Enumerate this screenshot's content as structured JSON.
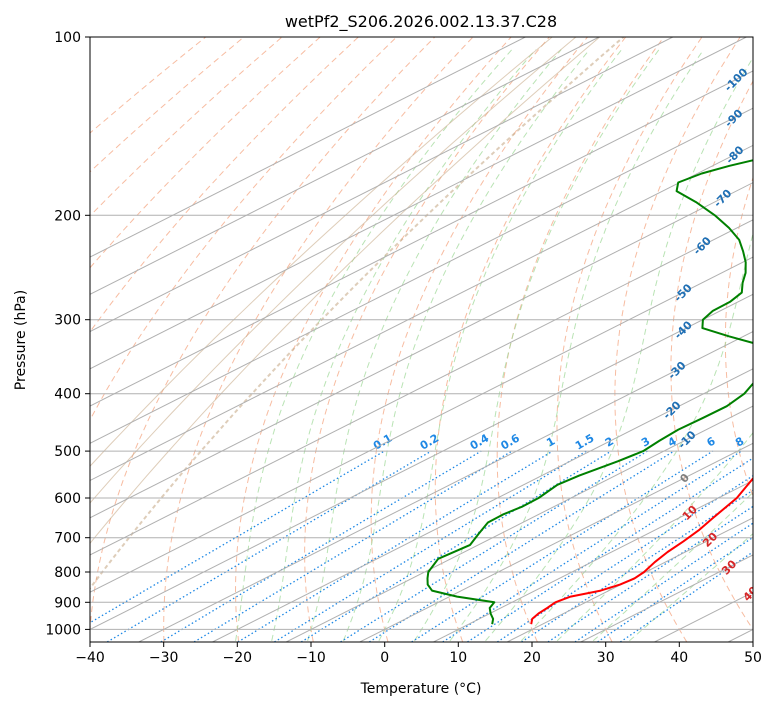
{
  "chart_data": {
    "type": "skew-t",
    "title": "wetPf2_S206.2026.002.13.37.C28",
    "xlabel": "Temperature (°C)",
    "ylabel": "Pressure (hPa)",
    "xlim": [
      -40,
      50
    ],
    "ylim_hpa": [
      1050,
      100
    ],
    "skew_c_per_log_pressure": 69.1,
    "x_ticks": [
      -40,
      -30,
      -20,
      -10,
      0,
      10,
      20,
      30,
      40,
      50
    ],
    "x_tick_labels": [
      "−40",
      "−30",
      "−20",
      "−10",
      "0",
      "10",
      "20",
      "30",
      "40",
      "50"
    ],
    "y_ticks": [
      100,
      200,
      300,
      400,
      500,
      600,
      700,
      800,
      900,
      1000
    ],
    "y_tick_labels": [
      "100",
      "200",
      "300",
      "400",
      "500",
      "600",
      "700",
      "800",
      "900",
      "1000"
    ],
    "grid": true,
    "series": [
      {
        "name": "temperature",
        "color": "#ff0000",
        "points": [
          [
            980,
            18.5
          ],
          [
            960,
            17.2
          ],
          [
            940,
            16.6
          ],
          [
            920,
            16.3
          ],
          [
            900,
            15.9
          ],
          [
            880,
            16.4
          ],
          [
            860,
            18.9
          ],
          [
            840,
            19.9
          ],
          [
            820,
            20.2
          ],
          [
            800,
            19.8
          ],
          [
            770,
            18.6
          ],
          [
            740,
            17.6
          ],
          [
            710,
            16.9
          ],
          [
            680,
            16.0
          ],
          [
            650,
            14.7
          ],
          [
            600,
            12.5
          ],
          [
            550,
            9.0
          ],
          [
            500,
            4.7
          ],
          [
            450,
            0.1
          ],
          [
            400,
            -6.0
          ],
          [
            370,
            -10.3
          ],
          [
            340,
            -14.4
          ],
          [
            310,
            -19.9
          ],
          [
            290,
            -24.2
          ],
          [
            270,
            -29.3
          ],
          [
            250,
            -34.7
          ],
          [
            240,
            -37.7
          ],
          [
            230,
            -40.1
          ],
          [
            220,
            -41.0
          ],
          [
            210,
            -40.0
          ],
          [
            200,
            -39.0
          ],
          [
            180,
            -38.2
          ],
          [
            160,
            -40.2
          ],
          [
            140,
            -45.1
          ],
          [
            130,
            -48.8
          ],
          [
            120,
            -53.7
          ],
          [
            112,
            -57.4
          ],
          [
            100,
            -64.6
          ]
        ]
      },
      {
        "name": "dewpoint",
        "color": "#008000",
        "points": [
          [
            980,
            13.2
          ],
          [
            960,
            11.9
          ],
          [
            940,
            10.1
          ],
          [
            920,
            8.5
          ],
          [
            900,
            7.6
          ],
          [
            880,
            1.0
          ],
          [
            860,
            -4.0
          ],
          [
            840,
            -6.2
          ],
          [
            820,
            -7.9
          ],
          [
            800,
            -9.5
          ],
          [
            760,
            -11.7
          ],
          [
            720,
            -11.1
          ],
          [
            690,
            -12.9
          ],
          [
            660,
            -14.7
          ],
          [
            640,
            -14.8
          ],
          [
            620,
            -14.3
          ],
          [
            600,
            -14.4
          ],
          [
            570,
            -15.4
          ],
          [
            550,
            -14.9
          ],
          [
            520,
            -13.5
          ],
          [
            500,
            -12.8
          ],
          [
            480,
            -13.4
          ],
          [
            460,
            -13.8
          ],
          [
            440,
            -13.6
          ],
          [
            420,
            -13.5
          ],
          [
            400,
            -14.5
          ],
          [
            380,
            -16.5
          ],
          [
            360,
            -18.9
          ],
          [
            340,
            -22.6
          ],
          [
            330,
            -26.0
          ],
          [
            320,
            -32.0
          ],
          [
            310,
            -37.8
          ],
          [
            300,
            -40.0
          ],
          [
            290,
            -41.0
          ],
          [
            280,
            -41.1
          ],
          [
            270,
            -42.0
          ],
          [
            260,
            -44.5
          ],
          [
            250,
            -46.8
          ],
          [
            240,
            -49.6
          ],
          [
            230,
            -52.9
          ],
          [
            220,
            -56.5
          ],
          [
            210,
            -61.1
          ],
          [
            200,
            -66.4
          ],
          [
            190,
            -72.5
          ],
          [
            182,
            -78.1
          ],
          [
            176,
            -80.2
          ],
          [
            170,
            -79.4
          ],
          [
            165,
            -77.7
          ],
          [
            160,
            -75.3
          ],
          [
            150,
            -71.8
          ],
          [
            140,
            -69.1
          ],
          [
            130,
            -67.3
          ],
          [
            120,
            -66.9
          ],
          [
            110,
            -67.5
          ],
          [
            100,
            -70.6
          ]
        ]
      }
    ],
    "isotherms_c": [
      -140,
      -130,
      -120,
      -110,
      -100,
      -90,
      -80,
      -70,
      -60,
      -50,
      -40,
      -30,
      -20,
      -10,
      0,
      10,
      20,
      30,
      40,
      50
    ],
    "dry_adiabats_c": [
      -100,
      -90,
      -80,
      -70,
      -60,
      -50,
      -40,
      -30,
      -20,
      -10,
      0,
      10,
      20,
      30,
      40,
      50,
      60,
      70,
      80,
      90,
      100,
      110,
      120,
      130,
      140,
      150,
      160,
      170,
      180,
      190,
      200,
      210
    ],
    "moist_adiabats_c": [
      -20,
      -15,
      -10,
      -5,
      0,
      5,
      10,
      15,
      20,
      25,
      30,
      35
    ],
    "mixing_ratios_gkg": [
      0.1,
      0.2,
      0.4,
      0.6,
      1,
      1.5,
      2,
      3,
      4,
      6,
      8,
      10,
      13,
      16,
      20,
      25,
      30,
      36
    ],
    "mixing_ratio_labels": [
      "0.1",
      "0.2",
      "0.4",
      "0.6",
      "1",
      "1.5",
      "2",
      "3",
      "4",
      "6",
      "8",
      "10",
      "13",
      "16",
      "20",
      "25",
      "30",
      "36"
    ],
    "isotherm_labels": [
      {
        "text": "-100",
        "value": -100
      },
      {
        "text": "-90",
        "value": -90
      },
      {
        "text": "-80",
        "value": -80
      },
      {
        "text": "-70",
        "value": -70
      },
      {
        "text": "-60",
        "value": -60
      },
      {
        "text": "-50",
        "value": -50
      },
      {
        "text": "-40",
        "value": -40
      },
      {
        "text": "-30",
        "value": -30
      },
      {
        "text": "-20",
        "value": -20
      },
      {
        "text": "-10",
        "value": -10
      },
      {
        "text": "0",
        "value": 0
      },
      {
        "text": "10",
        "value": 10
      },
      {
        "text": "20",
        "value": 20
      },
      {
        "text": "30",
        "value": 30
      },
      {
        "text": "40",
        "value": 40
      }
    ]
  },
  "colors": {
    "temperature": "#ff0000",
    "dewpoint": "#008000",
    "isotherm": "#b0b0b0",
    "isobar": "#b0b0b0",
    "dry_adiabat": "#f4a582",
    "moist_adiabat": "#a1d99b",
    "mixing_ratio": "#1e88e5",
    "label_cold": "#1f6fb4",
    "label_zero": "#7f7f7f",
    "label_warm": "#d62728",
    "background_curves": "#c8ab8a"
  }
}
